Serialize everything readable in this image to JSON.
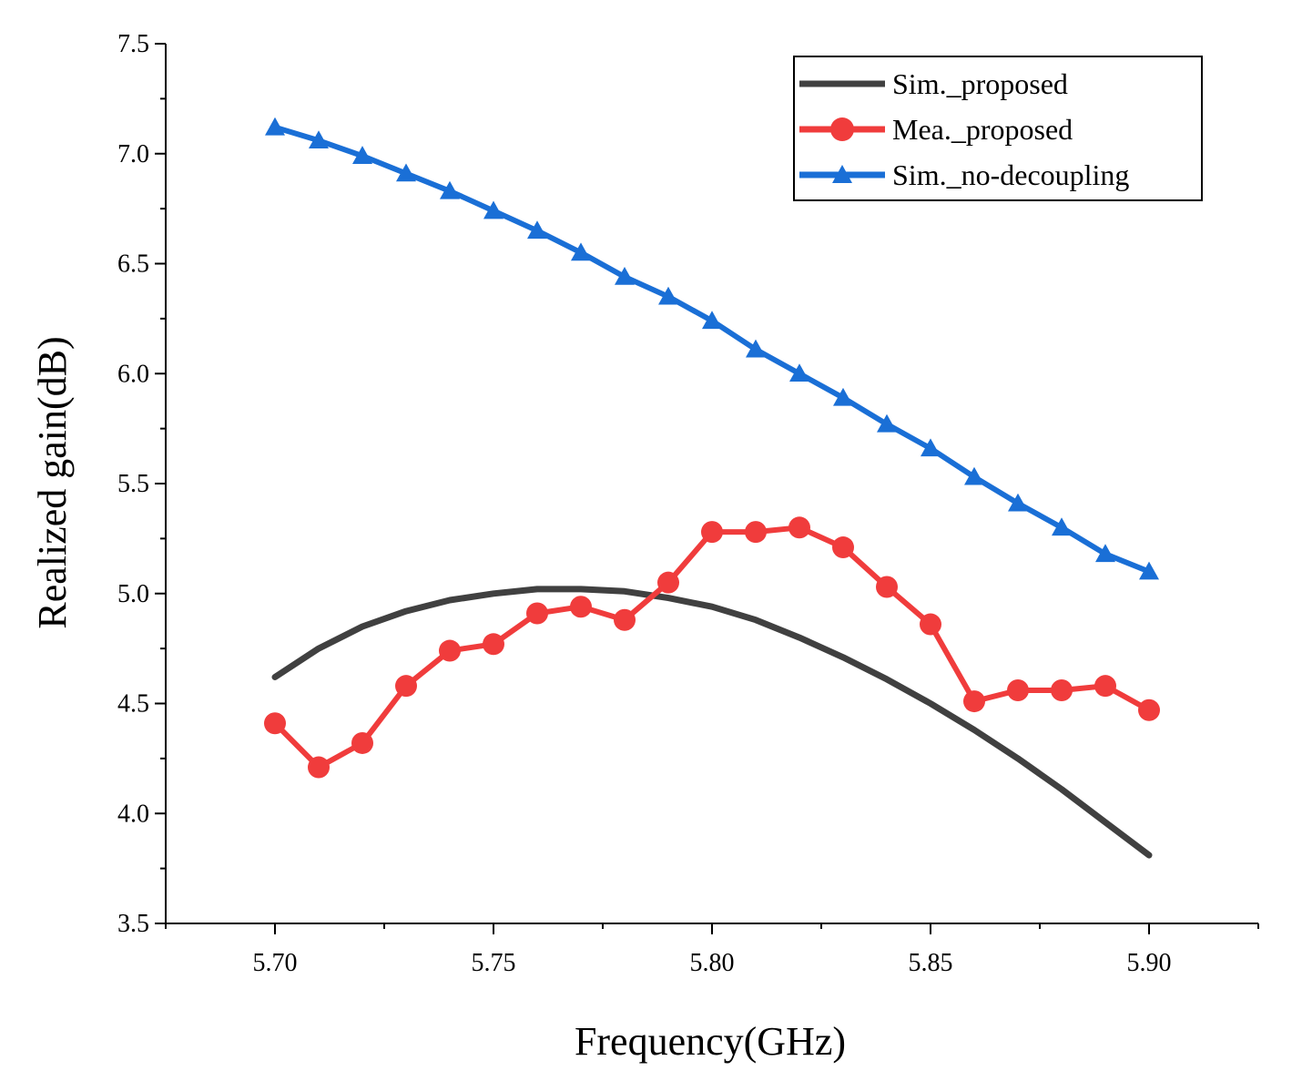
{
  "chart_data": {
    "type": "line",
    "xlabel": "Frequency(GHz)",
    "ylabel": "Realized gain(dB)",
    "xlim": [
      5.675,
      5.925
    ],
    "ylim": [
      3.5,
      7.5
    ],
    "x_ticks": [
      "5.70",
      "5.75",
      "5.80",
      "5.85",
      "5.90"
    ],
    "x_tick_values": [
      5.7,
      5.75,
      5.8,
      5.85,
      5.9
    ],
    "y_ticks": [
      "3.5",
      "4.0",
      "4.5",
      "5.0",
      "5.5",
      "6.0",
      "6.5",
      "7.0",
      "7.5"
    ],
    "y_tick_values": [
      3.5,
      4.0,
      4.5,
      5.0,
      5.5,
      6.0,
      6.5,
      7.0,
      7.5
    ],
    "legend_position": "top-right",
    "series": [
      {
        "name": "Sim._proposed",
        "color": "#404040",
        "marker": "none",
        "x": [
          5.7,
          5.71,
          5.72,
          5.73,
          5.74,
          5.75,
          5.76,
          5.77,
          5.78,
          5.79,
          5.8,
          5.81,
          5.82,
          5.83,
          5.84,
          5.85,
          5.86,
          5.87,
          5.88,
          5.89,
          5.9
        ],
        "values": [
          4.62,
          4.75,
          4.85,
          4.92,
          4.97,
          5.0,
          5.02,
          5.02,
          5.01,
          4.98,
          4.94,
          4.88,
          4.8,
          4.71,
          4.61,
          4.5,
          4.38,
          4.25,
          4.11,
          3.96,
          3.81
        ]
      },
      {
        "name": "Mea._proposed",
        "color": "#f03c3c",
        "marker": "circle",
        "x": [
          5.7,
          5.71,
          5.72,
          5.73,
          5.74,
          5.75,
          5.76,
          5.77,
          5.78,
          5.79,
          5.8,
          5.81,
          5.82,
          5.83,
          5.84,
          5.85,
          5.86,
          5.87,
          5.88,
          5.89,
          5.9
        ],
        "values": [
          4.41,
          4.21,
          4.32,
          4.58,
          4.74,
          4.77,
          4.91,
          4.94,
          4.88,
          5.05,
          5.28,
          5.28,
          5.3,
          5.21,
          5.03,
          4.86,
          4.51,
          4.56,
          4.56,
          4.58,
          4.47
        ]
      },
      {
        "name": "Sim._no-decoupling",
        "color": "#1a6fd6",
        "marker": "triangle",
        "x": [
          5.7,
          5.71,
          5.72,
          5.73,
          5.74,
          5.75,
          5.76,
          5.77,
          5.78,
          5.79,
          5.8,
          5.81,
          5.82,
          5.83,
          5.84,
          5.85,
          5.86,
          5.87,
          5.88,
          5.89,
          5.9
        ],
        "values": [
          7.12,
          7.06,
          6.99,
          6.91,
          6.83,
          6.74,
          6.65,
          6.55,
          6.44,
          6.35,
          6.24,
          6.11,
          6.0,
          5.89,
          5.77,
          5.66,
          5.53,
          5.41,
          5.3,
          5.18,
          5.1
        ]
      }
    ]
  }
}
